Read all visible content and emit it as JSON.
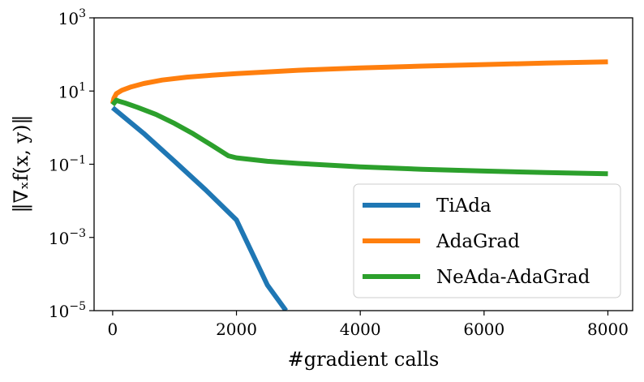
{
  "chart_data": {
    "type": "line",
    "xlabel": "#gradient calls",
    "ylabel": "‖∇ₓf(x, y)‖",
    "xlim": [
      -300,
      8400
    ],
    "ylim": [
      1e-05,
      1000
    ],
    "y_scale": "log",
    "x_ticks": [
      0,
      2000,
      4000,
      6000,
      8000
    ],
    "x_tick_labels": [
      "0",
      "2000",
      "4000",
      "6000",
      "8000"
    ],
    "y_ticks": [
      1e-05,
      0.001,
      0.1,
      10,
      1000
    ],
    "y_tick_labels": [
      {
        "base": "10",
        "exp": "−5"
      },
      {
        "base": "10",
        "exp": "−3"
      },
      {
        "base": "10",
        "exp": "−1"
      },
      {
        "base": "10",
        "exp": "1"
      },
      {
        "base": "10",
        "exp": "3"
      }
    ],
    "grid": false,
    "legend_position": "lower-right",
    "series": [
      {
        "name": "TiAda",
        "color": "#1f77b4",
        "x": [
          0,
          500,
          1000,
          1500,
          2000,
          2500,
          2800
        ],
        "y": [
          3.5,
          0.7,
          0.12,
          0.02,
          0.003,
          5e-05,
          1e-05
        ]
      },
      {
        "name": "AdaGrad",
        "color": "#ff7f0e",
        "x": [
          0,
          20,
          60,
          150,
          300,
          500,
          800,
          1200,
          1600,
          2000,
          3000,
          4000,
          5000,
          6000,
          7000,
          8000
        ],
        "y": [
          4.5,
          6.3,
          8.5,
          10.5,
          13,
          16,
          20,
          24,
          27,
          30,
          37,
          43,
          48,
          53,
          58,
          63
        ]
      },
      {
        "name": "NeAda-AdaGrad",
        "color": "#2ca02c",
        "x": [
          0,
          60,
          100,
          200,
          400,
          700,
          1000,
          1300,
          1600,
          1870,
          2000,
          2500,
          3000,
          4000,
          5000,
          6000,
          7000,
          8000
        ],
        "y": [
          4.2,
          5.6,
          5.3,
          4.7,
          3.6,
          2.3,
          1.3,
          0.68,
          0.33,
          0.17,
          0.15,
          0.12,
          0.105,
          0.085,
          0.073,
          0.065,
          0.059,
          0.055
        ]
      }
    ]
  }
}
